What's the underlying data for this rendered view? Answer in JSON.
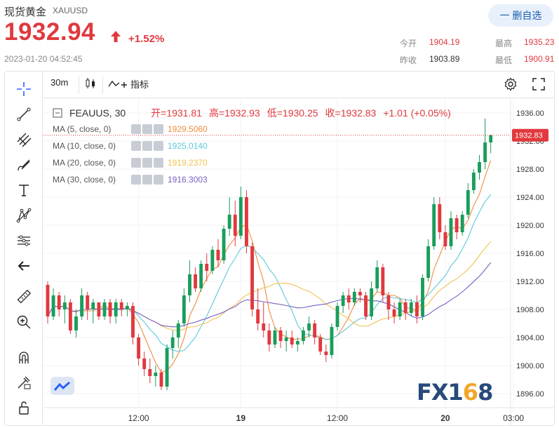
{
  "header": {
    "title": "现货黄金",
    "symbol": "XAUUSD",
    "price": "1932.94",
    "change_pct": "+1.52%",
    "timestamp": "2023-01-20 04:52:45",
    "remove_button": "一 删自选",
    "stats": {
      "open_label": "今开",
      "open_value": "1904.19",
      "prev_close_label": "昨收",
      "prev_close_value": "1903.89",
      "high_label": "最高",
      "high_value": "1935.23",
      "low_label": "最低",
      "low_value": "1900.91"
    },
    "up_color": "#e0393e",
    "down_color": "#1a9d5c"
  },
  "toolbar": {
    "interval": "30m",
    "indicators_label": "指标",
    "left_tools": [
      "crosshair-icon",
      "trend-line-icon",
      "fib-icon",
      "brush-icon",
      "text-icon",
      "pattern-icon",
      "measure-icon",
      "back-arrow-icon",
      "ruler-icon",
      "zoom-in-icon",
      "magnet-icon",
      "lock-draw-icon",
      "unlock-icon"
    ]
  },
  "legend": {
    "symbol": "FEAUUS, 30",
    "open": "开=1931.81",
    "high": "高=1932.93",
    "low": "低=1930.25",
    "close": "收=1932.83",
    "change": "+1.01 (+0.05%)",
    "ma": [
      {
        "name": "MA (5, close, 0)",
        "value": "1929.5060",
        "color": "#f08c3c"
      },
      {
        "name": "MA (10, close, 0)",
        "value": "1925.0140",
        "color": "#5ec8db"
      },
      {
        "name": "MA (20, close, 0)",
        "value": "1919.2370",
        "color": "#f2c14e"
      },
      {
        "name": "MA (30, close, 0)",
        "value": "1916.3003",
        "color": "#7b5ec2"
      }
    ]
  },
  "watermark": {
    "text_a": "FX1",
    "text_b": "6",
    "text_c": "8"
  },
  "chart_data": {
    "type": "candlestick",
    "timeframe": "30",
    "ylim": [
      1894,
      1938
    ],
    "y_ticks": [
      "1936.00",
      "1932.00",
      "1928.00",
      "1924.00",
      "1920.00",
      "1916.00",
      "1912.00",
      "1908.00",
      "1904.00",
      "1900.00",
      "1896.00"
    ],
    "x_ticks": [
      "12:00",
      "19",
      "12:00",
      "20",
      "03:00"
    ],
    "last_price_label": "1932.83",
    "grid": true,
    "candles": [
      [
        1911.5,
        1912.0,
        1906.0,
        1907.0
      ],
      [
        1907.0,
        1911.0,
        1906.5,
        1910.0
      ],
      [
        1910.0,
        1910.5,
        1907.0,
        1908.0
      ],
      [
        1908.0,
        1910.0,
        1906.0,
        1909.0
      ],
      [
        1909.0,
        1909.5,
        1904.5,
        1905.0
      ],
      [
        1905.0,
        1908.0,
        1904.0,
        1907.0
      ],
      [
        1907.0,
        1911.0,
        1906.5,
        1910.0
      ],
      [
        1910.0,
        1910.5,
        1906.5,
        1908.0
      ],
      [
        1908.0,
        1909.5,
        1906.0,
        1909.0
      ],
      [
        1909.0,
        1909.0,
        1906.5,
        1907.0
      ],
      [
        1907.0,
        1909.5,
        1906.5,
        1909.0
      ],
      [
        1909.0,
        1909.5,
        1906.0,
        1907.0
      ],
      [
        1907.0,
        1909.5,
        1906.0,
        1909.0
      ],
      [
        1909.0,
        1909.5,
        1907.0,
        1908.0
      ],
      [
        1908.0,
        1909.0,
        1907.0,
        1908.5
      ],
      [
        1908.5,
        1909.0,
        1903.0,
        1904.0
      ],
      [
        1904.0,
        1904.5,
        1900.0,
        1901.0
      ],
      [
        1901.0,
        1902.0,
        1898.5,
        1899.5
      ],
      [
        1899.5,
        1901.0,
        1897.5,
        1898.5
      ],
      [
        1898.5,
        1900.0,
        1897.0,
        1899.0
      ],
      [
        1899.0,
        1899.5,
        1896.5,
        1897.0
      ],
      [
        1897.0,
        1903.0,
        1896.5,
        1902.5
      ],
      [
        1902.5,
        1905.0,
        1901.0,
        1904.0
      ],
      [
        1904.0,
        1906.5,
        1902.5,
        1906.0
      ],
      [
        1906.0,
        1911.0,
        1905.5,
        1910.0
      ],
      [
        1910.0,
        1915.0,
        1909.0,
        1913.0
      ],
      [
        1913.0,
        1914.0,
        1910.5,
        1911.0
      ],
      [
        1911.0,
        1915.0,
        1910.5,
        1914.5
      ],
      [
        1914.5,
        1916.0,
        1912.0,
        1913.5
      ],
      [
        1913.5,
        1917.0,
        1913.0,
        1916.5
      ],
      [
        1916.5,
        1918.0,
        1914.0,
        1915.0
      ],
      [
        1915.0,
        1920.0,
        1914.5,
        1919.5
      ],
      [
        1919.5,
        1924.0,
        1918.5,
        1921.5
      ],
      [
        1921.5,
        1923.5,
        1917.0,
        1918.5
      ],
      [
        1918.5,
        1925.5,
        1918.0,
        1924.0
      ],
      [
        1924.0,
        1925.0,
        1916.0,
        1917.0
      ],
      [
        1917.0,
        1917.5,
        1907.0,
        1908.0
      ],
      [
        1908.0,
        1911.0,
        1905.0,
        1906.0
      ],
      [
        1906.0,
        1909.0,
        1904.0,
        1905.0
      ],
      [
        1905.0,
        1906.0,
        1902.0,
        1903.0
      ],
      [
        1903.0,
        1905.5,
        1902.5,
        1905.0
      ],
      [
        1905.0,
        1905.5,
        1902.5,
        1903.5
      ],
      [
        1903.5,
        1905.0,
        1902.0,
        1904.0
      ],
      [
        1904.0,
        1905.0,
        1902.5,
        1903.0
      ],
      [
        1903.0,
        1904.0,
        1902.0,
        1903.5
      ],
      [
        1903.5,
        1905.5,
        1903.0,
        1905.0
      ],
      [
        1905.0,
        1907.0,
        1904.0,
        1906.0
      ],
      [
        1906.0,
        1906.5,
        1903.0,
        1904.0
      ],
      [
        1904.0,
        1904.5,
        1901.5,
        1902.0
      ],
      [
        1902.0,
        1903.0,
        1900.5,
        1901.5
      ],
      [
        1901.5,
        1906.0,
        1901.0,
        1905.5
      ],
      [
        1905.5,
        1909.0,
        1905.0,
        1908.5
      ],
      [
        1908.5,
        1910.5,
        1907.5,
        1910.0
      ],
      [
        1910.0,
        1911.0,
        1908.0,
        1909.0
      ],
      [
        1909.0,
        1911.0,
        1908.5,
        1910.5
      ],
      [
        1910.5,
        1911.0,
        1909.0,
        1910.0
      ],
      [
        1910.0,
        1910.5,
        1906.5,
        1907.0
      ],
      [
        1907.0,
        1912.0,
        1906.5,
        1911.0
      ],
      [
        1911.0,
        1915.0,
        1910.5,
        1914.0
      ],
      [
        1914.0,
        1914.5,
        1909.0,
        1910.0
      ],
      [
        1910.0,
        1910.5,
        1906.5,
        1908.0
      ],
      [
        1908.0,
        1909.0,
        1906.0,
        1907.0
      ],
      [
        1907.0,
        1909.5,
        1906.5,
        1909.0
      ],
      [
        1909.0,
        1909.5,
        1906.5,
        1907.5
      ],
      [
        1907.5,
        1909.5,
        1907.0,
        1909.0
      ],
      [
        1909.0,
        1910.0,
        1906.0,
        1907.0
      ],
      [
        1907.0,
        1913.0,
        1906.5,
        1912.5
      ],
      [
        1912.5,
        1918.0,
        1912.0,
        1917.0
      ],
      [
        1917.0,
        1924.0,
        1916.5,
        1923.0
      ],
      [
        1923.0,
        1924.0,
        1918.0,
        1919.0
      ],
      [
        1919.0,
        1920.0,
        1916.5,
        1917.0
      ],
      [
        1917.0,
        1922.0,
        1916.5,
        1921.0
      ],
      [
        1921.0,
        1921.5,
        1918.0,
        1919.0
      ],
      [
        1919.0,
        1922.0,
        1918.5,
        1921.5
      ],
      [
        1921.5,
        1926.0,
        1921.0,
        1925.0
      ],
      [
        1925.0,
        1928.0,
        1924.5,
        1927.5
      ],
      [
        1927.5,
        1930.0,
        1926.5,
        1929.0
      ],
      [
        1929.0,
        1935.2,
        1928.0,
        1931.8
      ],
      [
        1931.8,
        1932.9,
        1930.25,
        1932.83
      ]
    ]
  }
}
